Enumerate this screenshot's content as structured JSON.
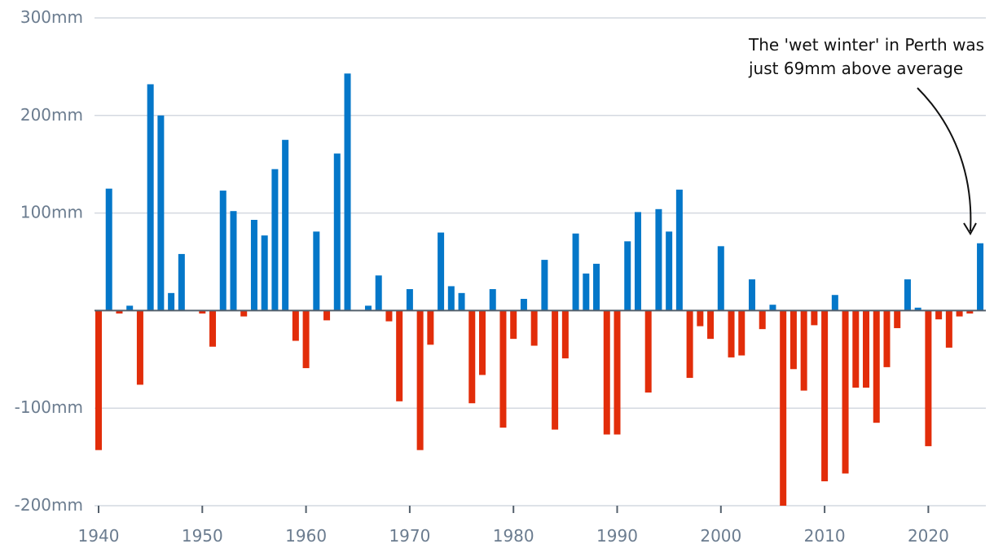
{
  "chart_data": {
    "type": "bar",
    "title": "",
    "xlabel": "",
    "ylabel": "",
    "ylim": [
      -200,
      300
    ],
    "y_ticks": [
      {
        "value": 300,
        "label": "300mm"
      },
      {
        "value": 200,
        "label": "200mm"
      },
      {
        "value": 100,
        "label": "100mm"
      },
      {
        "value": -100,
        "label": "-100mm"
      },
      {
        "value": -200,
        "label": "-200mm"
      }
    ],
    "x_ticks": [
      1940,
      1950,
      1960,
      1970,
      1980,
      1990,
      2000,
      2010,
      2020
    ],
    "colors": {
      "positive": "#0477c9",
      "negative": "#e22d0a",
      "grid": "#d4d9e0",
      "axis": "#54606c"
    },
    "grid": true,
    "series": [
      {
        "x": [
          1940,
          1941,
          1942,
          1943,
          1944,
          1945,
          1946,
          1947,
          1948,
          1949,
          1950,
          1951,
          1952,
          1953,
          1954,
          1955,
          1956,
          1957,
          1958,
          1959,
          1960,
          1961,
          1962,
          1963,
          1964,
          1965,
          1966,
          1967,
          1968,
          1969,
          1970,
          1971,
          1972,
          1973,
          1974,
          1975,
          1976,
          1977,
          1978,
          1979,
          1980,
          1981,
          1982,
          1983,
          1984,
          1985,
          1986,
          1987,
          1988,
          1989,
          1990,
          1991,
          1992,
          1993,
          1994,
          1995,
          1996,
          1997,
          1998,
          1999,
          2000,
          2001,
          2002,
          2003,
          2004,
          2005,
          2006,
          2007,
          2008,
          2009,
          2010,
          2011,
          2012,
          2013,
          2014,
          2015,
          2016,
          2017,
          2018,
          2019,
          2020,
          2021,
          2022,
          2023,
          2024,
          2025
        ],
        "values": [
          -143,
          125,
          -3,
          5,
          -76,
          232,
          200,
          18,
          58,
          0,
          -3,
          -37,
          123,
          102,
          -6,
          93,
          77,
          145,
          175,
          -31,
          -59,
          81,
          -10,
          161,
          243,
          0,
          5,
          36,
          -11,
          -93,
          22,
          -143,
          -35,
          80,
          25,
          18,
          -95,
          -66,
          22,
          -120,
          -29,
          12,
          -36,
          52,
          -122,
          -49,
          79,
          38,
          48,
          -127,
          -127,
          71,
          101,
          -84,
          104,
          81,
          124,
          -69,
          -16,
          -29,
          66,
          -48,
          -46,
          32,
          -19,
          6,
          -200,
          -60,
          -82,
          -15,
          -175,
          16,
          -167,
          -79,
          -79,
          -115,
          -58,
          -18,
          32,
          3,
          -139,
          -9,
          -38,
          -6,
          -3,
          69
        ]
      }
    ],
    "annotation": {
      "line1": "The 'wet winter' in Perth was",
      "line2": "just 69mm above average"
    }
  }
}
